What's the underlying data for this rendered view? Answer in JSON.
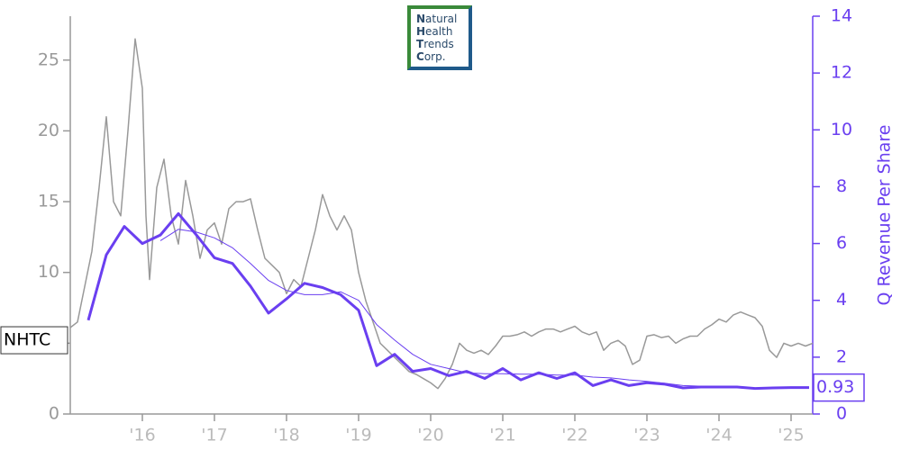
{
  "chart_data": {
    "type": "line",
    "logo": [
      "Natural",
      "Health",
      "Trends",
      "Corp."
    ],
    "y2label": "Q Revenue Per Share",
    "xlim": [
      2015.0,
      2025.3
    ],
    "xticks": [
      {
        "value": 2016,
        "label": "'16"
      },
      {
        "value": 2017,
        "label": "'17"
      },
      {
        "value": 2018,
        "label": "'18"
      },
      {
        "value": 2019,
        "label": "'19"
      },
      {
        "value": 2020,
        "label": "'20"
      },
      {
        "value": 2021,
        "label": "'21"
      },
      {
        "value": 2022,
        "label": "'22"
      },
      {
        "value": 2023,
        "label": "'23"
      },
      {
        "value": 2024,
        "label": "'24"
      },
      {
        "value": 2025,
        "label": "'25"
      }
    ],
    "ylim": [
      0,
      28.1
    ],
    "yticks": [
      0,
      5,
      10,
      15,
      20,
      25
    ],
    "y2lim": [
      0,
      14
    ],
    "y2ticks": [
      0,
      2,
      4,
      6,
      8,
      10,
      12,
      14
    ],
    "grid": false,
    "series": [
      {
        "name": "NHTC",
        "color": "#999999",
        "x": [
          2015.0,
          2015.1,
          2015.2,
          2015.3,
          2015.4,
          2015.5,
          2015.55,
          2015.6,
          2015.7,
          2015.8,
          2015.9,
          2016.0,
          2016.05,
          2016.1,
          2016.2,
          2016.3,
          2016.4,
          2016.5,
          2016.6,
          2016.7,
          2016.8,
          2016.9,
          2017.0,
          2017.1,
          2017.2,
          2017.3,
          2017.4,
          2017.5,
          2017.6,
          2017.7,
          2017.8,
          2017.9,
          2018.0,
          2018.1,
          2018.2,
          2018.3,
          2018.4,
          2018.5,
          2018.6,
          2018.7,
          2018.8,
          2018.9,
          2019.0,
          2019.1,
          2019.2,
          2019.3,
          2019.4,
          2019.5,
          2019.6,
          2019.7,
          2019.8,
          2019.9,
          2020.0,
          2020.1,
          2020.2,
          2020.3,
          2020.4,
          2020.5,
          2020.6,
          2020.7,
          2020.8,
          2020.9,
          2021.0,
          2021.1,
          2021.2,
          2021.3,
          2021.4,
          2021.5,
          2021.6,
          2021.7,
          2021.8,
          2021.9,
          2022.0,
          2022.1,
          2022.2,
          2022.3,
          2022.4,
          2022.5,
          2022.6,
          2022.7,
          2022.8,
          2022.9,
          2023.0,
          2023.1,
          2023.2,
          2023.3,
          2023.4,
          2023.5,
          2023.6,
          2023.7,
          2023.8,
          2023.9,
          2024.0,
          2024.1,
          2024.2,
          2024.3,
          2024.4,
          2024.5,
          2024.6,
          2024.7,
          2024.8,
          2024.9,
          2025.0,
          2025.1,
          2025.2,
          2025.3
        ],
        "values": [
          6.1,
          6.5,
          9,
          11.5,
          16,
          21,
          18,
          15,
          14,
          20,
          26.5,
          23,
          14,
          9.5,
          16,
          18,
          14,
          12,
          16.5,
          14,
          11,
          13,
          13.5,
          12,
          14.5,
          15,
          15,
          15.2,
          13,
          11,
          10.5,
          10,
          8.5,
          9.5,
          9,
          11,
          13,
          15.5,
          14,
          13,
          14,
          13,
          10,
          8,
          6.5,
          5,
          4.5,
          4,
          3.5,
          3,
          2.8,
          2.5,
          2.2,
          1.8,
          2.5,
          3.5,
          5,
          4.5,
          4.3,
          4.5,
          4.2,
          4.8,
          5.5,
          5.5,
          5.6,
          5.8,
          5.5,
          5.8,
          6.0,
          6.0,
          5.8,
          6,
          6.2,
          5.8,
          5.6,
          5.8,
          4.5,
          5.0,
          5.2,
          4.8,
          3.5,
          3.8,
          5.5,
          5.6,
          5.4,
          5.5,
          5.0,
          5.3,
          5.5,
          5.5,
          6,
          6.3,
          6.7,
          6.5,
          7.0,
          7.2,
          7.0,
          6.8,
          6.2,
          4.5,
          4.0,
          5.0,
          4.8,
          5.0,
          4.8,
          5.0
        ]
      },
      {
        "name": "Q Revenue Per Share",
        "color": "#6a3ff0",
        "axis": "y2",
        "x": [
          2015.25,
          2015.5,
          2015.75,
          2016.0,
          2016.25,
          2016.5,
          2016.75,
          2017.0,
          2017.25,
          2017.5,
          2017.75,
          2018.0,
          2018.25,
          2018.5,
          2018.75,
          2019.0,
          2019.25,
          2019.5,
          2019.75,
          2020.0,
          2020.25,
          2020.5,
          2020.75,
          2021.0,
          2021.25,
          2021.5,
          2021.75,
          2022.0,
          2022.25,
          2022.5,
          2022.75,
          2023.0,
          2023.25,
          2023.5,
          2023.75,
          2024.0,
          2024.25,
          2024.5,
          2024.75,
          2025.0,
          2025.25
        ],
        "values": [
          3.3,
          5.6,
          6.6,
          6.0,
          6.3,
          7.05,
          6.3,
          5.5,
          5.3,
          4.5,
          3.55,
          4.05,
          4.6,
          4.45,
          4.2,
          3.65,
          1.7,
          2.1,
          1.5,
          1.6,
          1.35,
          1.5,
          1.25,
          1.6,
          1.2,
          1.45,
          1.25,
          1.45,
          1.0,
          1.2,
          1.0,
          1.1,
          1.05,
          0.92,
          0.95,
          0.95,
          0.95,
          0.9,
          0.92,
          0.93,
          0.93
        ]
      },
      {
        "color": "#6a3ff0",
        "axis": "y2",
        "x": [
          2015.25,
          2015.5,
          2015.75,
          2016.0,
          2016.25,
          2016.5,
          2016.75,
          2017.0,
          2017.25,
          2017.5,
          2017.75,
          2018.0,
          2018.25,
          2018.5,
          2018.75,
          2019.0,
          2019.25,
          2019.5,
          2019.75,
          2020.0,
          2020.25,
          2020.5,
          2020.75,
          2021.0,
          2021.25,
          2021.5,
          2021.75,
          2022.0,
          2022.25,
          2022.5,
          2022.75,
          2023.0,
          2023.25,
          2023.5,
          2023.75,
          2024.0,
          2024.25,
          2024.5,
          2024.75,
          2025.0,
          2025.25
        ],
        "values": [
          null,
          null,
          null,
          null,
          6.1,
          6.5,
          6.4,
          6.2,
          5.85,
          5.3,
          4.7,
          4.35,
          4.2,
          4.2,
          4.3,
          4.0,
          3.15,
          2.6,
          2.1,
          1.75,
          1.6,
          1.45,
          1.42,
          1.42,
          1.4,
          1.4,
          1.37,
          1.37,
          1.3,
          1.27,
          1.2,
          1.15,
          1.08,
          1.0,
          0.98,
          0.95,
          0.95,
          0.92,
          0.92,
          0.93,
          0.93
        ]
      }
    ]
  }
}
